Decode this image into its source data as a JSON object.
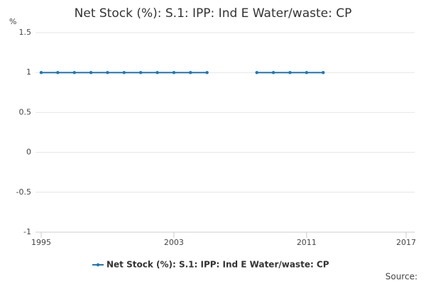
{
  "chart_data": {
    "type": "line",
    "title": "Net Stock (%): S.1: IPP: Ind E Water/waste: CP",
    "y_label": "%",
    "x": [
      1995,
      1996,
      1997,
      1998,
      1999,
      2000,
      2001,
      2002,
      2003,
      2004,
      2005,
      2006,
      2007,
      2008,
      2009,
      2010,
      2011,
      2012
    ],
    "series": [
      {
        "name": "Net Stock (%): S.1: IPP: Ind E Water/waste: CP",
        "color": "#1f77b4",
        "values": [
          1,
          1,
          1,
          1,
          1,
          1,
          1,
          1,
          1,
          1,
          1,
          null,
          null,
          1,
          1,
          1,
          1,
          1
        ]
      }
    ],
    "xlim": [
      1995,
      2017
    ],
    "xticks": [
      1995,
      2003,
      2011,
      2017
    ],
    "ylim": [
      -1,
      1.5
    ],
    "yticks": [
      -1,
      -0.5,
      0,
      0.5,
      1,
      1.5
    ],
    "grid": true,
    "legend": "bottom",
    "source": "Source:"
  }
}
